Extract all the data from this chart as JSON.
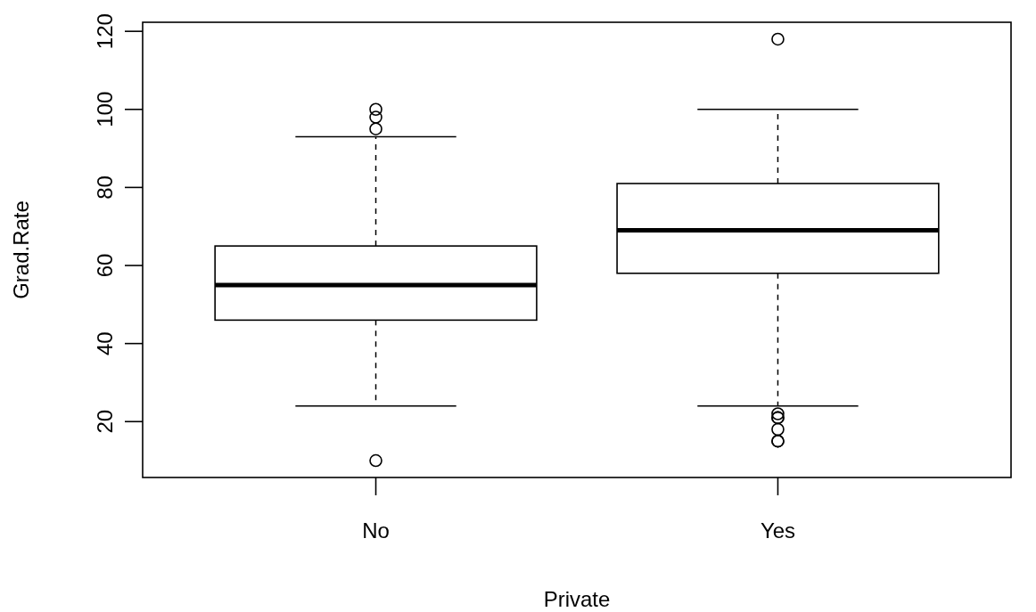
{
  "chart_data": {
    "type": "box",
    "xlabel": "Private",
    "ylabel": "Grad.Rate",
    "categories": [
      "No",
      "Yes"
    ],
    "boxes": [
      {
        "low": 24,
        "q1": 46,
        "median": 55,
        "q3": 65,
        "high": 93,
        "outliers": [
          10,
          95,
          98,
          100
        ]
      },
      {
        "low": 24,
        "q1": 58,
        "median": 69,
        "q3": 81,
        "high": 100,
        "outliers": [
          118,
          15,
          15,
          18,
          21,
          21,
          22
        ]
      }
    ],
    "ylim": [
      5.68,
      122.32
    ],
    "yticks": [
      20,
      40,
      60,
      80,
      100,
      120
    ],
    "grid": false,
    "marker": "circle"
  }
}
